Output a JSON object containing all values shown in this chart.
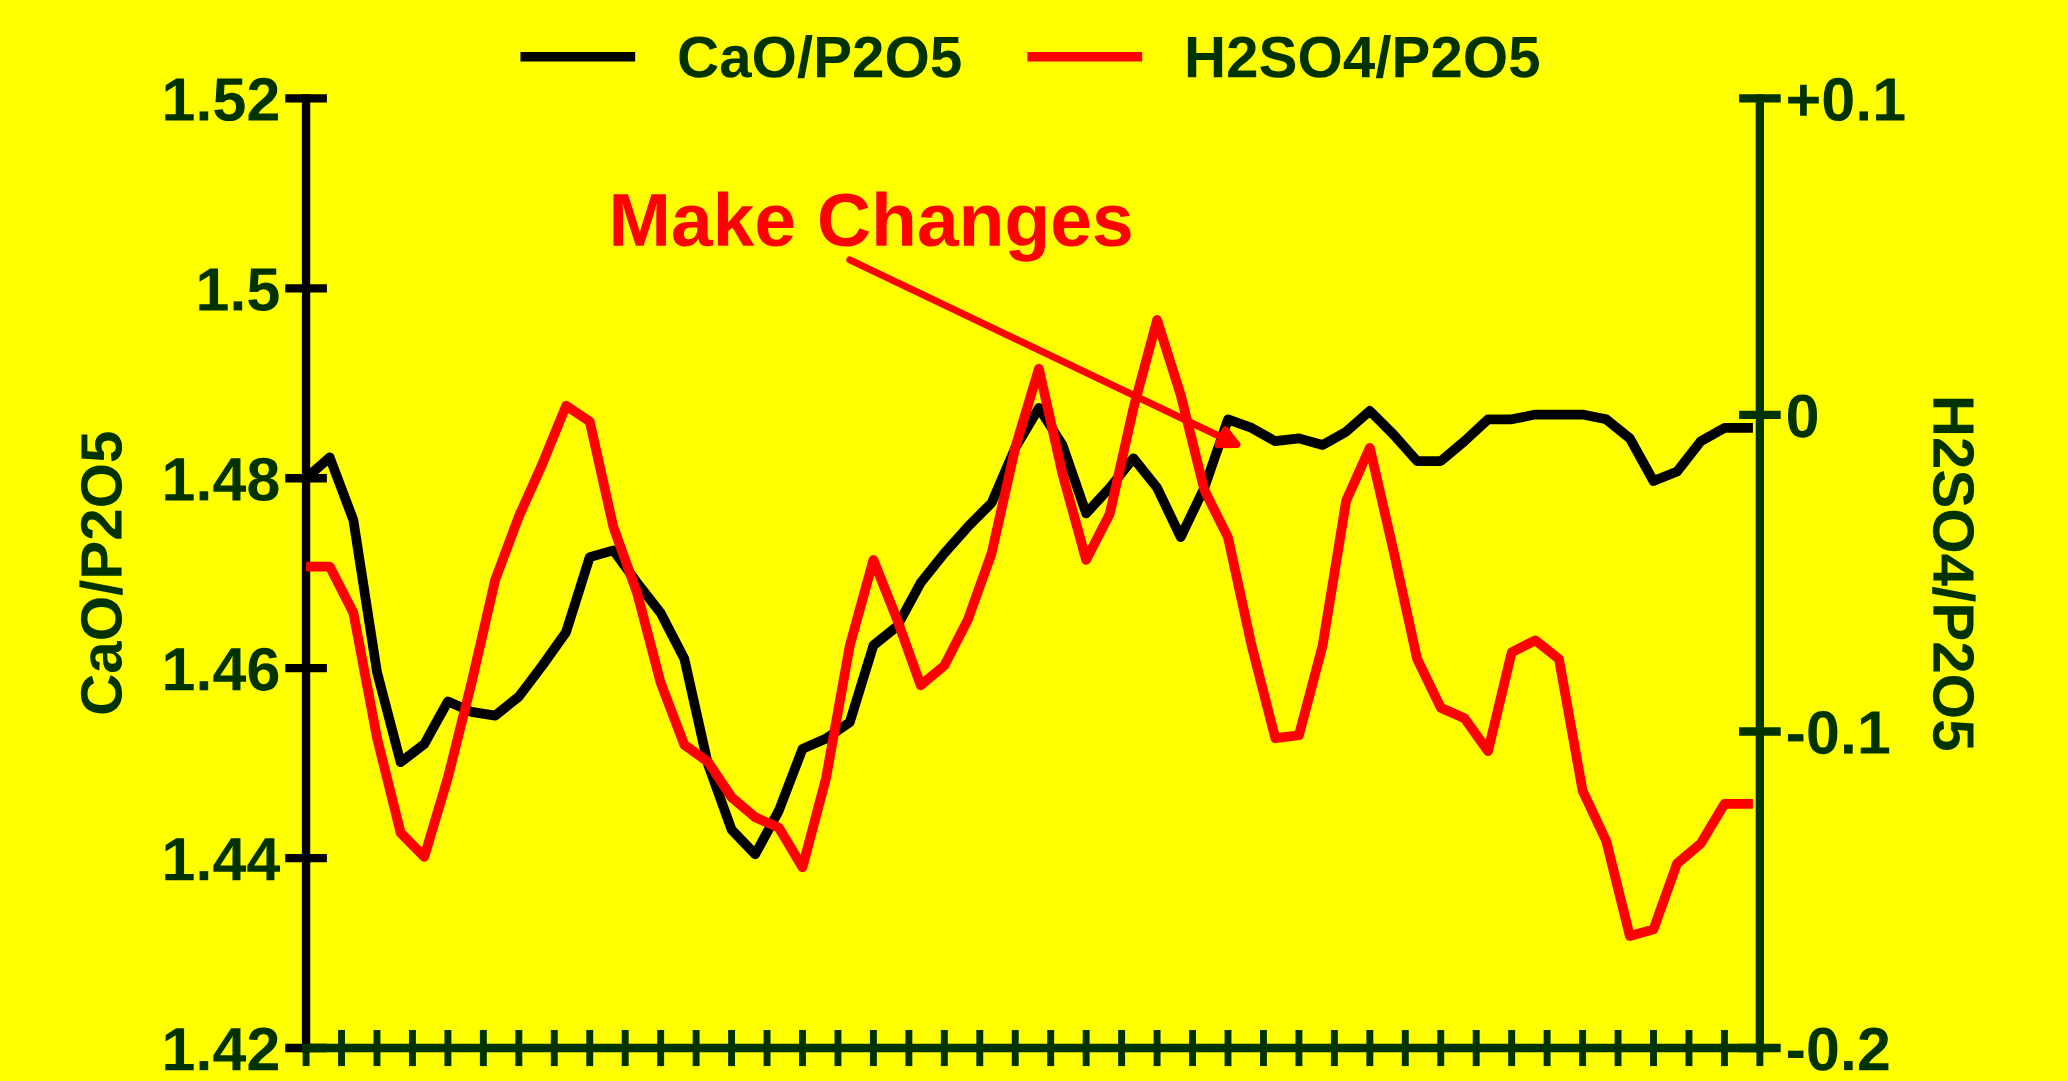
{
  "chart_data": {
    "type": "line",
    "categories": [
      null,
      null,
      null,
      null,
      null,
      null,
      null,
      null,
      null,
      null,
      null,
      null,
      null,
      null,
      null,
      null,
      null,
      null,
      null,
      null,
      null,
      null,
      null,
      null,
      null,
      null,
      null,
      null,
      null,
      null,
      null,
      null,
      null,
      null,
      null,
      null,
      null,
      null,
      null,
      null,
      null,
      null,
      null,
      null,
      null,
      null,
      null,
      null,
      null,
      null,
      null,
      null,
      null,
      null,
      null,
      null,
      null,
      null,
      null,
      null,
      null,
      null
    ],
    "series": [
      {
        "name": "CaO/P2O5",
        "color": "#000000",
        "values": [
          1.48,
          1.4822,
          1.4756,
          1.4596,
          1.4501,
          1.452,
          1.4565,
          1.4554,
          1.455,
          1.457,
          1.4603,
          1.4638,
          1.4717,
          1.4724,
          1.469,
          1.4658,
          1.461,
          1.4499,
          1.443,
          1.4404,
          1.445,
          1.4515,
          1.4526,
          1.4543,
          1.4624,
          1.4644,
          1.469,
          1.4721,
          1.4749,
          1.4774,
          1.4832,
          1.4874,
          1.4835,
          1.4763,
          1.479,
          1.4821,
          1.479,
          1.4738,
          1.479,
          1.4862,
          1.4853,
          1.4839,
          1.4842,
          1.4835,
          1.4849,
          1.4871,
          1.4846,
          1.4818,
          1.4818,
          1.4839,
          1.4862,
          1.4862,
          1.4867,
          1.4867,
          1.4867,
          1.4862,
          1.4842,
          1.4797,
          1.4807,
          1.4839,
          1.4853,
          1.4853
        ]
      },
      {
        "name": "H2SO4/P2O5",
        "color": "#ff0000",
        "axis": "y2",
        "values": [
          -0.0479,
          -0.0479,
          -0.0625,
          -0.102,
          -0.132,
          -0.1396,
          -0.1146,
          -0.0846,
          -0.0521,
          -0.0321,
          -0.0154,
          0.0029,
          -0.0021,
          -0.0354,
          -0.0562,
          -0.0846,
          -0.1042,
          -0.1096,
          -0.1208,
          -0.1271,
          -0.1304,
          -0.1429,
          -0.1146,
          -0.0729,
          -0.0458,
          -0.0646,
          -0.0854,
          -0.0792,
          -0.0646,
          -0.0437,
          -0.0104,
          0.0146,
          -0.0187,
          -0.0458,
          -0.0312,
          0.0021,
          0.03,
          0.0063,
          -0.0237,
          -0.0387,
          -0.0729,
          -0.1021,
          -0.1012,
          -0.0729,
          -0.0271,
          -0.0104,
          -0.0429,
          -0.0771,
          -0.0925,
          -0.0958,
          -0.1062,
          -0.075,
          -0.0712,
          -0.0771,
          -0.1187,
          -0.1346,
          -0.1646,
          -0.1625,
          -0.1417,
          -0.1354,
          -0.1229,
          -0.1229
        ]
      }
    ],
    "ylabel": "CaO/P2O5",
    "y2label": "H2SO4/P2O5",
    "ylim": [
      1.42,
      1.52
    ],
    "yticks": [
      {
        "value": 1.42,
        "label": "1.42"
      },
      {
        "value": 1.44,
        "label": "1.44"
      },
      {
        "value": 1.46,
        "label": "1.46"
      },
      {
        "value": 1.48,
        "label": "1.48"
      },
      {
        "value": 1.5,
        "label": "1.5"
      },
      {
        "value": 1.52,
        "label": "1.52"
      }
    ],
    "y2lim": [
      -0.2,
      0.1
    ],
    "y2ticks": [
      {
        "value": -0.2,
        "label": "-0.2"
      },
      {
        "value": -0.1,
        "label": "-0.1"
      },
      {
        "value": 0,
        "label": "0"
      },
      {
        "value": 0.1,
        "label": "+0.1"
      }
    ],
    "annotations": [
      "Make Changes"
    ],
    "legend": "top",
    "grid": false,
    "marker": "none",
    "line_style": "solid"
  }
}
